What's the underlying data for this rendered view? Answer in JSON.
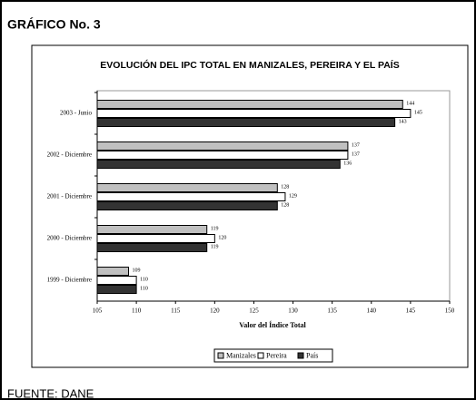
{
  "header": "GRÁFICO No. 3",
  "source": "FUENTE: DANE",
  "chart_data": {
    "type": "hbar",
    "title": "EVOLUCIÓN DEL IPC TOTAL EN MANIZALES, PEREIRA Y EL PAÍS",
    "x_label": "Valor del Índice Total",
    "categories": [
      "2003 - Junio",
      "2002 - Diciembre",
      "2001 - Diciembre",
      "2000 - Diciembre",
      "1999 - Diciembre"
    ],
    "series": [
      {
        "name": "Manizales",
        "color": "#c0c0c0",
        "values": [
          144,
          137,
          128,
          119,
          109
        ]
      },
      {
        "name": "Pereira",
        "color": "#ffffff",
        "values": [
          145,
          137,
          129,
          120,
          110
        ]
      },
      {
        "name": "País",
        "color": "#333333",
        "values": [
          143,
          136,
          128,
          119,
          110
        ]
      }
    ],
    "xlim": [
      105,
      150
    ],
    "xticks": [
      105,
      110,
      115,
      120,
      125,
      130,
      135,
      140,
      145,
      150
    ],
    "legend": "bottom"
  }
}
